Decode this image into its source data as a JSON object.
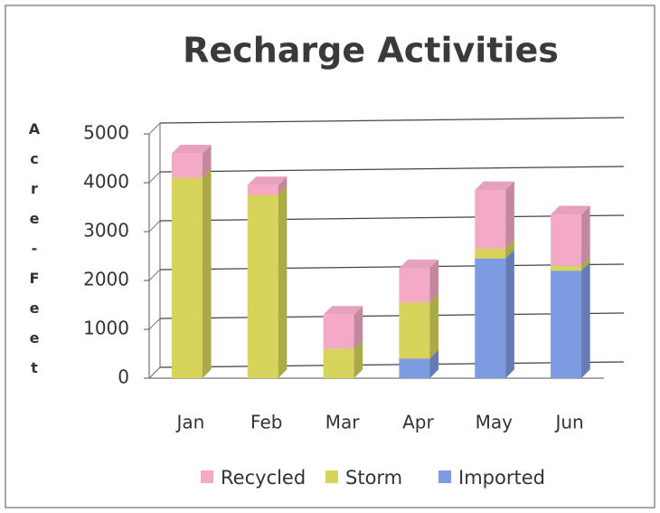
{
  "chart_data": {
    "type": "bar",
    "stacked": true,
    "title": "Recharge Activities",
    "y_label": "Acre-Feet",
    "categories": [
      "Jan",
      "Feb",
      "Mar",
      "Apr",
      "May",
      "Jun"
    ],
    "series": [
      {
        "name": "Imported",
        "color": "#7d9be0",
        "values": [
          0,
          0,
          0,
          400,
          2450,
          2200
        ]
      },
      {
        "name": "Storm",
        "color": "#d6d45a",
        "values": [
          4100,
          3750,
          600,
          1150,
          200,
          100
        ]
      },
      {
        "name": "Recycled",
        "color": "#f4a9c6",
        "values": [
          500,
          200,
          700,
          700,
          1200,
          1050
        ]
      }
    ],
    "ylim": [
      0,
      5000
    ],
    "yticks": [
      0,
      1000,
      2000,
      3000,
      4000,
      5000
    ],
    "grid": true
  }
}
